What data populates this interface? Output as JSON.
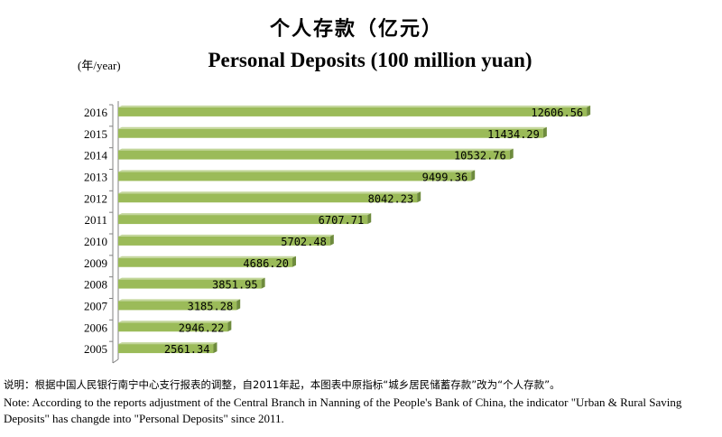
{
  "chart_data": {
    "type": "bar",
    "orientation": "horizontal",
    "title": "个人存款（亿元）",
    "subtitle": "Personal Deposits (100 million yuan)",
    "unit_label": "(年/year)",
    "categories": [
      "2016",
      "2015",
      "2014",
      "2013",
      "2012",
      "2011",
      "2010",
      "2009",
      "2008",
      "2007",
      "2006",
      "2005"
    ],
    "values": [
      12606.56,
      11434.29,
      10532.76,
      9499.36,
      8042.23,
      6707.71,
      5702.48,
      4686.2,
      3851.95,
      3185.28,
      2946.22,
      2561.34
    ],
    "value_labels": [
      "12606.56",
      "11434.29",
      "10532.76",
      "9499.36",
      "8042.23",
      "6707.71",
      "5702.48",
      "4686.20",
      "3851.95",
      "3185.28",
      "2946.22",
      "2561.34"
    ],
    "xlim": [
      0,
      12700
    ],
    "grid": false,
    "colors": {
      "bar": "#9bbb59",
      "bar_top": "#c3d69b",
      "bar_side": "#6e8b3d",
      "axis": "#808080"
    }
  },
  "notes": {
    "cn": "说明：根据中国人民银行南宁中心支行报表的调整，自2011年起，本图表中原指标“城乡居民储蓄存款”改为“个人存款”。",
    "en": "Note:   According to the reports adjustment of the Central Branch in Nanning of the People's Bank of China, the indicator \"Urban & Rural Saving Deposits\" has changde into \"Personal Deposits\" since 2011."
  }
}
